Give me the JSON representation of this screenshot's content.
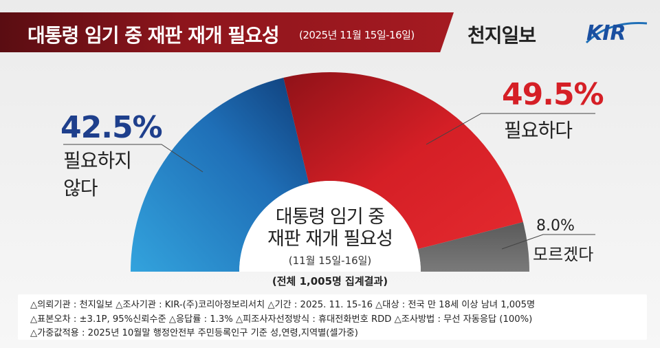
{
  "header": {
    "title": "대통령 임기 중 재판 재개 필요성",
    "subtitle": "(2025년 11월 15일-16일)",
    "publisher": "천지일보",
    "partner_logo": "KIR"
  },
  "colors": {
    "need": "#d51f26",
    "no_need": "#1f6fb7",
    "dont_know": "#6e6e6e",
    "banner": "#8d151c"
  },
  "chart_data": {
    "type": "pie",
    "variant": "semicircle-donut",
    "categories": [
      "필요하지 않다",
      "필요하다",
      "모르겠다"
    ],
    "values": [
      42.5,
      49.5,
      8.0
    ],
    "labels": [
      "42.5%",
      "49.5%",
      "8.0%"
    ],
    "center_title_line1": "대통령 임기 중",
    "center_title_line2": "재판 재개 필요성",
    "center_subtitle": "(11월 15일-16일)",
    "total_note": "(전체 1,005명 집계결과)"
  },
  "labels": {
    "no_need_line1": "필요하지",
    "no_need_line2": "않다",
    "need": "필요하다",
    "dont_know": "모르겠다"
  },
  "notes": [
    "△의뢰기관 : 천지일보     △조사기관 : KIR-(주)코리아정보리서치    △기간 : 2025. 11. 15-16  △대상 : 전국 만 18세 이상 남녀 1,005명",
    "△표본오차 : ±3.1P, 95%신뢰수준   △응답률 : 1.3%   △피조사자선정방식 : 휴대전화번호 RDD    △조사방법 : 무선 자동응답 (100%)",
    "△가중값적용 : 2025년 10월말 행정안전부 주민등록인구 기준 성,연령,지역별(셀가중)"
  ]
}
